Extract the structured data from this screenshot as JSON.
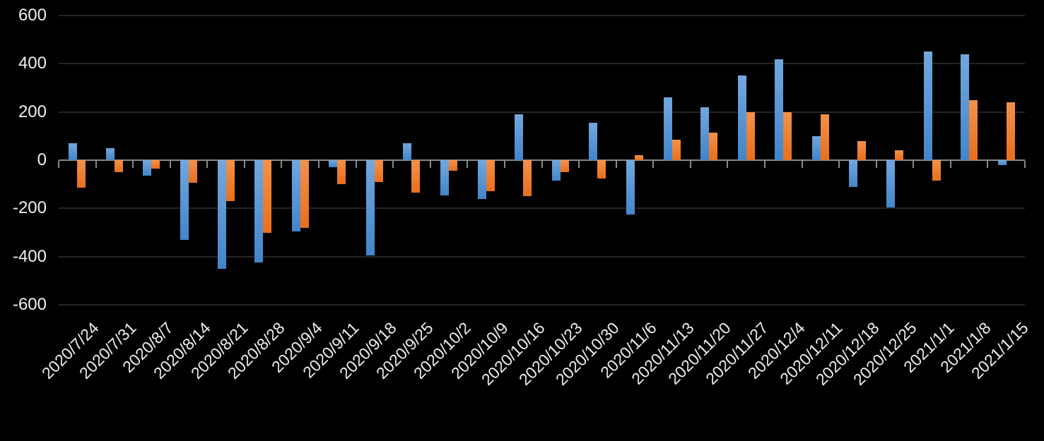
{
  "chart_data": {
    "type": "bar",
    "title": "",
    "categories": [
      "2020/7/24",
      "2020/7/31",
      "2020/8/7",
      "2020/8/14",
      "2020/8/21",
      "2020/8/28",
      "2020/9/4",
      "2020/9/11",
      "2020/9/18",
      "2020/9/25",
      "2020/10/2",
      "2020/10/9",
      "2020/10/16",
      "2020/10/23",
      "2020/10/30",
      "2020/11/6",
      "2020/11/13",
      "2020/11/20",
      "2020/11/27",
      "2020/12/4",
      "2020/12/11",
      "2020/12/18",
      "2020/12/25",
      "2021/1/1",
      "2021/1/8",
      "2021/1/15"
    ],
    "series": [
      {
        "name": "blue",
        "color": "#5B9BD5",
        "fill_top": "#72A7DD",
        "fill_bottom": "#4385CB",
        "values": [
          70,
          50,
          -65,
          -330,
          -450,
          -425,
          -295,
          -30,
          -395,
          70,
          -145,
          -160,
          190,
          -85,
          155,
          -225,
          260,
          220,
          350,
          420,
          100,
          -110,
          -195,
          450,
          440,
          -20
        ]
      },
      {
        "name": "orange",
        "color": "#ED7D31",
        "fill_top": "#F3914A",
        "fill_bottom": "#E86F1C",
        "values": [
          -115,
          -50,
          -35,
          -95,
          -170,
          -300,
          -280,
          -100,
          -90,
          -135,
          -45,
          -130,
          -150,
          -50,
          -75,
          20,
          85,
          115,
          200,
          200,
          190,
          80,
          40,
          -85,
          250,
          240
        ]
      }
    ],
    "y_axis": {
      "ticks": [
        600,
        400,
        200,
        0,
        -200,
        -400,
        -600
      ],
      "min": -600,
      "max": 600
    },
    "x_axis": {
      "label_rotation_deg": 45
    },
    "grid": true,
    "legend": "none",
    "background": "#000000",
    "text_color": "#EDEDED"
  }
}
